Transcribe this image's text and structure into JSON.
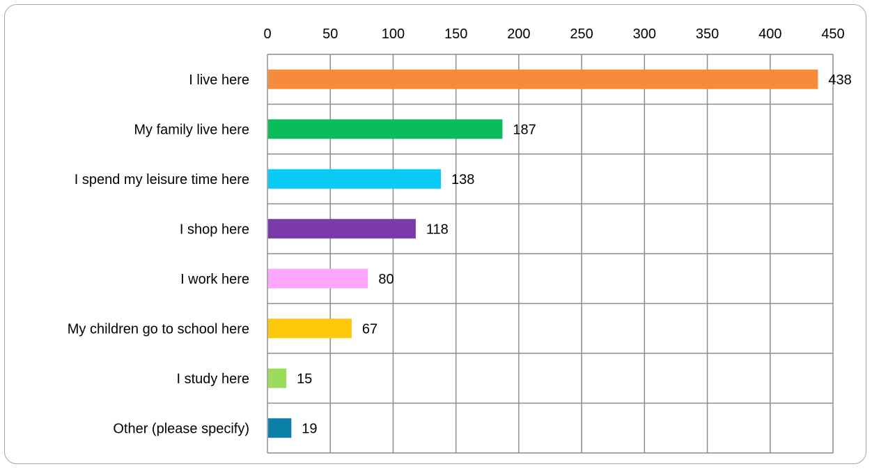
{
  "chart_data": {
    "type": "bar",
    "orientation": "horizontal",
    "title": "",
    "xlabel": "",
    "ylabel": "",
    "categories": [
      "I live here",
      "My family live here",
      "I spend my leisure time here",
      "I shop here",
      "I work here",
      "My children go to school here",
      "I study here",
      "Other (please specify)"
    ],
    "values": [
      438,
      187,
      138,
      118,
      80,
      67,
      15,
      19
    ],
    "colors": [
      "#f78b3c",
      "#0abd5a",
      "#0acbf6",
      "#7a3aa8",
      "#fca6fc",
      "#fdc80a",
      "#9bdc5a",
      "#0a80a8"
    ],
    "xlim": [
      0,
      450
    ],
    "xticks": [
      0,
      50,
      100,
      150,
      200,
      250,
      300,
      350,
      400,
      450
    ],
    "x_axis_position": "top",
    "grid": true,
    "legend": "none",
    "data_labels": true
  }
}
